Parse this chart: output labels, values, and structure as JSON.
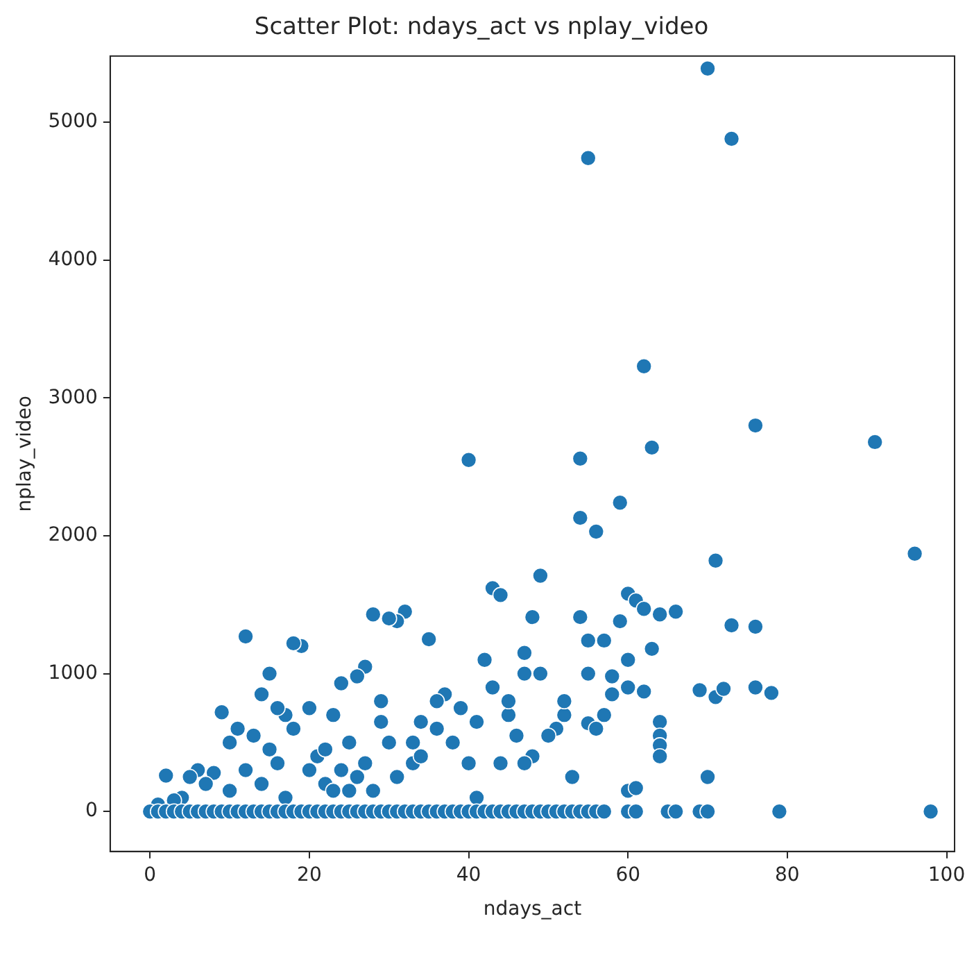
{
  "chart_data": {
    "type": "scatter",
    "title": "Scatter Plot: ndays_act vs nplay_video",
    "xlabel": "ndays_act",
    "ylabel": "nplay_video",
    "color": "#1f77b4",
    "marker": "circle",
    "grid": false,
    "x": [
      70,
      73,
      55,
      62,
      76,
      91,
      63,
      40,
      54,
      96,
      59,
      54,
      56,
      71,
      49,
      43,
      44,
      60,
      61,
      62,
      64,
      66,
      57,
      55,
      63,
      73,
      76,
      48,
      54,
      49,
      55,
      58,
      59,
      60,
      60,
      62,
      64,
      64,
      64,
      64,
      69,
      71,
      72,
      76,
      78,
      70,
      60,
      61,
      55,
      56,
      57,
      52,
      51,
      50,
      48,
      47,
      46,
      45,
      45,
      44,
      43,
      42,
      41,
      40,
      41,
      39,
      37,
      36,
      35,
      34,
      33,
      32,
      31,
      30,
      28,
      29,
      29,
      27,
      26,
      25,
      24,
      23,
      22,
      21,
      20,
      19,
      18,
      17,
      16,
      15,
      15,
      14,
      13,
      12,
      12,
      11,
      10,
      9,
      8,
      7,
      6,
      5,
      4,
      3,
      2,
      1,
      38,
      36,
      33,
      31,
      27,
      25,
      26,
      30,
      34,
      47,
      47,
      52,
      53,
      58,
      18,
      16,
      14,
      10,
      20,
      22,
      24,
      28,
      23,
      17,
      0,
      1,
      2,
      3,
      4,
      5,
      6,
      7,
      8,
      9,
      10,
      11,
      12,
      13,
      14,
      15,
      16,
      17,
      18,
      19,
      20,
      21,
      22,
      23,
      24,
      25,
      26,
      27,
      28,
      29,
      30,
      31,
      32,
      33,
      34,
      35,
      36,
      37,
      38,
      39,
      40,
      41,
      42,
      43,
      44,
      45,
      46,
      47,
      48,
      49,
      50,
      51,
      52,
      53,
      54,
      55,
      56,
      57,
      60,
      61,
      65,
      66,
      69,
      70,
      79,
      98
    ],
    "values": [
      5390,
      4880,
      4740,
      3230,
      2800,
      2680,
      2640,
      2550,
      2560,
      1870,
      2240,
      2130,
      2030,
      1820,
      1710,
      1620,
      1570,
      1580,
      1530,
      1470,
      1430,
      1450,
      1240,
      1240,
      1180,
      1350,
      1340,
      1410,
      1410,
      1000,
      1000,
      980,
      1380,
      1100,
      900,
      870,
      650,
      550,
      480,
      400,
      880,
      830,
      890,
      900,
      860,
      250,
      150,
      170,
      640,
      600,
      700,
      700,
      600,
      550,
      400,
      350,
      550,
      700,
      800,
      350,
      900,
      1100,
      650,
      350,
      100,
      750,
      850,
      800,
      1250,
      650,
      500,
      1450,
      1380,
      1400,
      1430,
      800,
      650,
      1050,
      980,
      500,
      930,
      700,
      200,
      400,
      750,
      1200,
      1220,
      700,
      750,
      1000,
      450,
      850,
      550,
      1270,
      300,
      600,
      500,
      720,
      280,
      200,
      300,
      250,
      100,
      80,
      260,
      50,
      500,
      600,
      350,
      250,
      350,
      150,
      250,
      500,
      400,
      1150,
      1000,
      800,
      250,
      850,
      600,
      350,
      200,
      150,
      300,
      450,
      300,
      150,
      150,
      100,
      0,
      0,
      0,
      0,
      0,
      0,
      0,
      0,
      0,
      0,
      0,
      0,
      0,
      0,
      0,
      0,
      0,
      0,
      0,
      0,
      0,
      0,
      0,
      0,
      0,
      0,
      0,
      0,
      0,
      0,
      0,
      0,
      0,
      0,
      0,
      0,
      0,
      0,
      0,
      0,
      0,
      0,
      0,
      0,
      0,
      0,
      0,
      0,
      0,
      0,
      0,
      0,
      0,
      0,
      0,
      0,
      0,
      0,
      0,
      0,
      0,
      0,
      0,
      0,
      0,
      0
    ],
    "xlim": [
      -5,
      101
    ],
    "ylim": [
      -290,
      5480
    ],
    "xticks": [
      0,
      20,
      40,
      60,
      80,
      100
    ],
    "yticks": [
      0,
      1000,
      2000,
      3000,
      4000,
      5000
    ]
  }
}
